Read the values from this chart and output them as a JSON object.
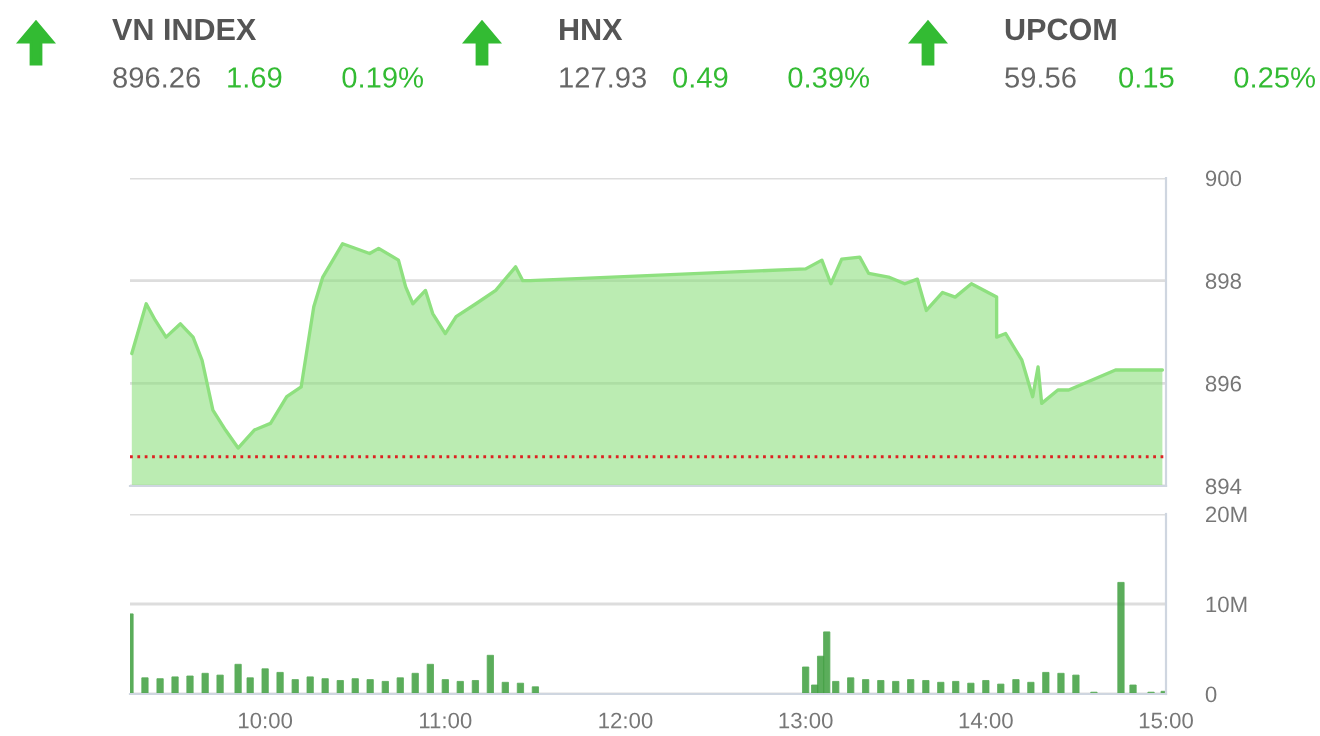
{
  "chart_data": [
    {
      "type": "other",
      "categories": [
        "VN INDEX",
        "HNX",
        "UPCOM"
      ],
      "values": [
        896.26,
        127.93,
        59.56
      ],
      "value_labels": [
        "896.26",
        "127.93",
        "59.56"
      ],
      "color": "#33bb33",
      "annotations": [
        "1.69",
        "0.19%",
        "0.49",
        "0.39%",
        "0.15",
        "0.25%"
      ]
    },
    {
      "type": "area",
      "x": [
        9.26,
        9.34,
        9.39,
        9.45,
        9.53,
        9.6,
        9.65,
        9.71,
        9.78,
        9.85,
        9.94,
        10.03,
        10.12,
        10.2,
        10.27,
        10.32,
        10.43,
        10.58,
        10.63,
        10.74,
        10.78,
        10.82,
        10.89,
        10.93,
        11.0,
        11.06,
        11.17,
        11.28,
        11.39,
        11.43,
        11.47,
        13.0,
        13.09,
        13.14,
        13.2,
        13.3,
        13.35,
        13.46,
        13.55,
        13.62,
        13.67,
        13.76,
        13.83,
        13.92,
        14.06,
        14.06,
        14.11,
        14.2,
        14.26,
        14.29,
        14.31,
        14.4,
        14.46,
        14.72,
        14.73,
        14.98
      ],
      "xlim": [
        9.25,
        15.0
      ],
      "ylim": [
        894,
        900
      ],
      "yticks": [
        894,
        896,
        898,
        900
      ],
      "grid": "y",
      "tick_labels": "y",
      "series": [
        {
          "color": "#8ee07f",
          "values": [
            896.58,
            897.55,
            897.23,
            896.9,
            897.16,
            896.9,
            896.45,
            895.48,
            895.09,
            894.74,
            895.09,
            895.22,
            895.74,
            895.93,
            897.49,
            898.07,
            898.72,
            898.53,
            898.63,
            898.4,
            897.88,
            897.55,
            897.81,
            897.36,
            896.97,
            897.3,
            897.55,
            897.81,
            898.27,
            898.0,
            898.0,
            898.23,
            898.4,
            897.94,
            898.42,
            898.46,
            898.14,
            898.07,
            897.94,
            898.03,
            897.42,
            897.77,
            897.68,
            897.94,
            897.68,
            896.9,
            896.97,
            896.45,
            895.74,
            896.32,
            895.61,
            895.87,
            895.87,
            896.26,
            896.26,
            896.26
          ]
        }
      ],
      "ref_lines": [
        {
          "axis": "y",
          "value": 894.57,
          "color": "#dd2222",
          "line_style": "dotted"
        }
      ]
    },
    {
      "type": "bar",
      "x": [
        9.25,
        9.333,
        9.417,
        9.5,
        9.583,
        9.667,
        9.75,
        9.85,
        9.917,
        10.0,
        10.083,
        10.167,
        10.25,
        10.333,
        10.417,
        10.5,
        10.583,
        10.667,
        10.75,
        10.833,
        10.917,
        11.0,
        11.083,
        11.167,
        11.25,
        11.333,
        11.417,
        11.5,
        13.0,
        13.05,
        13.083,
        13.117,
        13.167,
        13.25,
        13.333,
        13.417,
        13.5,
        13.583,
        13.667,
        13.75,
        13.833,
        13.917,
        14.0,
        14.083,
        14.167,
        14.25,
        14.333,
        14.417,
        14.5,
        14.6,
        14.75,
        14.817,
        14.917,
        14.99
      ],
      "values": [
        8.9,
        1.8,
        1.7,
        1.9,
        2.0,
        2.3,
        2.1,
        3.3,
        1.8,
        2.8,
        2.4,
        1.6,
        1.9,
        1.7,
        1.5,
        1.7,
        1.6,
        1.4,
        1.8,
        2.3,
        3.3,
        1.6,
        1.4,
        1.5,
        4.3,
        1.3,
        1.2,
        0.8,
        3.0,
        1.0,
        4.2,
        6.9,
        1.4,
        1.8,
        1.6,
        1.5,
        1.4,
        1.6,
        1.5,
        1.3,
        1.4,
        1.2,
        1.5,
        1.1,
        1.6,
        1.3,
        2.4,
        2.3,
        2.1,
        0.2,
        12.4,
        1.0,
        0.2,
        0.3
      ],
      "color": "#3f9f3f",
      "xlim": [
        9.25,
        15.0
      ],
      "ylim": [
        0,
        20
      ],
      "xticks": [
        {
          "value": 10,
          "label": "10:00"
        },
        {
          "value": 11,
          "label": "11:00"
        },
        {
          "value": 12,
          "label": "12:00"
        },
        {
          "value": 13,
          "label": "13:00"
        },
        {
          "value": 14,
          "label": "14:00"
        },
        {
          "value": 15,
          "label": "15:00"
        }
      ],
      "yticks": [
        0,
        {
          "value": 10,
          "label": "10M"
        },
        {
          "value": 20,
          "label": "20M"
        }
      ],
      "grid": "y"
    }
  ]
}
